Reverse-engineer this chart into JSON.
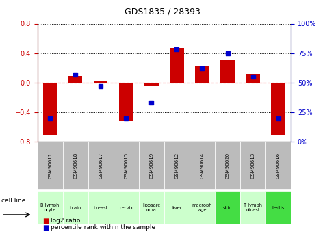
{
  "title": "GDS1835 / 28393",
  "samples": [
    "GSM90611",
    "GSM90618",
    "GSM90617",
    "GSM90615",
    "GSM90619",
    "GSM90612",
    "GSM90614",
    "GSM90620",
    "GSM90613",
    "GSM90616"
  ],
  "cell_lines": [
    "B lymph\nocyte",
    "brain",
    "breast",
    "cervix",
    "liposarc\noma",
    "liver",
    "macroph\nage",
    "skin",
    "T lymph\noblast",
    "testis"
  ],
  "cell_line_colors": [
    "#ccffcc",
    "#ccffcc",
    "#ccffcc",
    "#ccffcc",
    "#ccffcc",
    "#ccffcc",
    "#ccffcc",
    "#44dd44",
    "#ccffcc",
    "#44dd44"
  ],
  "log2_ratio": [
    -0.72,
    0.09,
    0.02,
    -0.52,
    -0.05,
    0.47,
    0.22,
    0.3,
    0.12,
    -0.72
  ],
  "percentile_rank": [
    20,
    57,
    47,
    20,
    33,
    78,
    62,
    75,
    55,
    20
  ],
  "ylim_left": [
    -0.8,
    0.8
  ],
  "ylim_right": [
    0,
    100
  ],
  "yticks_left": [
    -0.8,
    -0.4,
    0.0,
    0.4,
    0.8
  ],
  "yticks_right": [
    0,
    25,
    50,
    75,
    100
  ],
  "log2_color": "#cc0000",
  "percentile_color": "#0000cc",
  "bg_color": "#ffffff",
  "zero_line_color": "#ff0000",
  "sample_bg": "#bbbbbb",
  "legend_log2": "log2 ratio",
  "legend_pct": "percentile rank within the sample",
  "bar_width": 0.55
}
